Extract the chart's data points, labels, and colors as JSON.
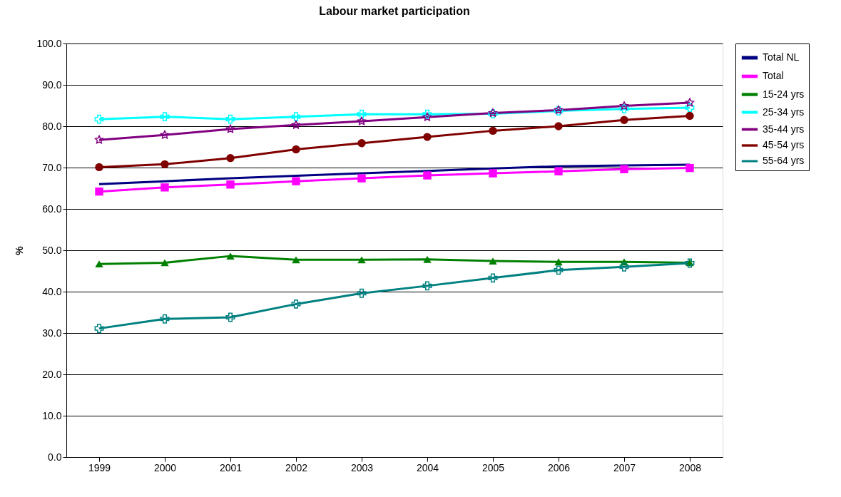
{
  "chart_data": {
    "type": "line",
    "title": "Labour market participation",
    "ylabel": "%",
    "categories": [
      "1999",
      "2000",
      "2001",
      "2002",
      "2003",
      "2004",
      "2005",
      "2006",
      "2007",
      "2008"
    ],
    "series": [
      {
        "name": "Total NL",
        "color": "#000080",
        "marker": "none",
        "values": [
          66.0,
          66.7,
          67.4,
          68.0,
          68.6,
          69.2,
          69.8,
          70.3,
          70.5,
          70.7
        ]
      },
      {
        "name": "Total",
        "color": "#ff00ff",
        "marker": "square",
        "values": [
          64.2,
          65.2,
          65.9,
          66.7,
          67.4,
          68.1,
          68.6,
          69.1,
          69.6,
          69.9
        ]
      },
      {
        "name": "15-24 yrs",
        "color": "#008000",
        "marker": "triangle",
        "values": [
          46.7,
          47.0,
          48.6,
          47.7,
          47.7,
          47.8,
          47.4,
          47.2,
          47.2,
          47.0
        ]
      },
      {
        "name": "25-34 yrs",
        "color": "#00ffff",
        "marker": "cross",
        "values": [
          81.7,
          82.3,
          81.7,
          82.3,
          82.9,
          82.9,
          83.0,
          83.7,
          84.2,
          84.5
        ]
      },
      {
        "name": "35-44 yrs",
        "color": "#800080",
        "marker": "star",
        "values": [
          76.7,
          77.9,
          79.3,
          80.3,
          81.2,
          82.2,
          83.2,
          83.9,
          84.9,
          85.7
        ]
      },
      {
        "name": "45-54 yrs",
        "color": "#800000",
        "marker": "circle",
        "values": [
          70.1,
          70.8,
          72.3,
          74.4,
          75.9,
          77.4,
          78.9,
          80.0,
          81.5,
          82.5
        ]
      },
      {
        "name": "55-64 yrs",
        "color": "#008080",
        "marker": "cross",
        "values": [
          31.1,
          33.4,
          33.8,
          37.0,
          39.6,
          41.4,
          43.3,
          45.2,
          46.0,
          46.9
        ]
      }
    ],
    "ylim": [
      0,
      100
    ],
    "yticks": [
      {
        "value": 0,
        "label": "0.0"
      },
      {
        "value": 10,
        "label": "10.0"
      },
      {
        "value": 20,
        "label": "20.0"
      },
      {
        "value": 30,
        "label": "30.0"
      },
      {
        "value": 40,
        "label": "40.0"
      },
      {
        "value": 50,
        "label": "50.0"
      },
      {
        "value": 60,
        "label": "60.0"
      },
      {
        "value": 70,
        "label": "70.0"
      },
      {
        "value": 80,
        "label": "80.0"
      },
      {
        "value": 90,
        "label": "90.0"
      },
      {
        "value": 100,
        "label": "100.0"
      }
    ],
    "grid": "y",
    "legend": "right",
    "line_style": "solid"
  }
}
